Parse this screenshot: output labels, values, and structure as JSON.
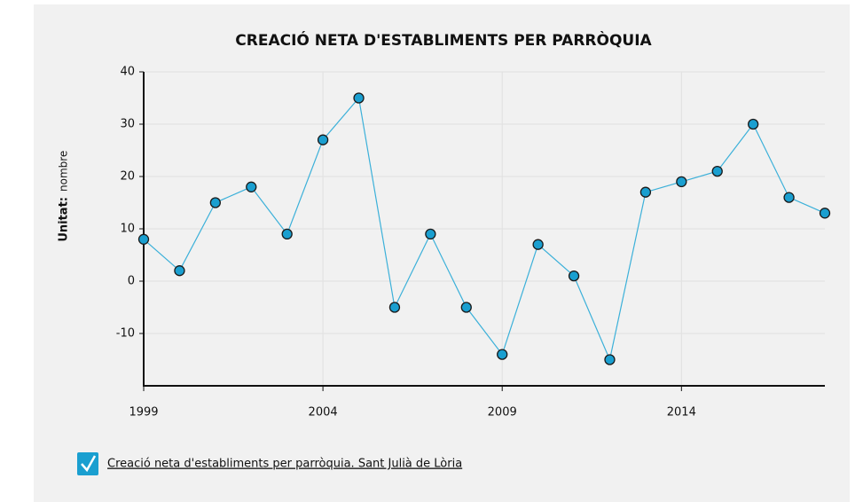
{
  "chart_data": {
    "type": "line",
    "title": "CREACIÓ NETA D'ESTABLIMENTS PER PARRÒQUIA",
    "ylabel": {
      "key": "Unitat:",
      "value": "nombre"
    },
    "x": [
      1999,
      2000,
      2001,
      2002,
      2003,
      2004,
      2005,
      2006,
      2007,
      2008,
      2009,
      2010,
      2011,
      2012,
      2013,
      2014,
      2015,
      2016,
      2017,
      2018
    ],
    "series": [
      {
        "name": "Creació neta d'establiments per parròquia. Sant Julià de Lòria",
        "color": "#1a9fd0",
        "values": [
          8,
          2,
          15,
          18,
          9,
          27,
          35,
          -5,
          9,
          -5,
          -14,
          7,
          1,
          -15,
          17,
          19,
          21,
          30,
          16,
          13
        ]
      }
    ],
    "xlim": [
      1999,
      2018
    ],
    "xticks": [
      1999,
      2004,
      2009,
      2014
    ],
    "ylim": [
      -20,
      40
    ],
    "yticks": [
      -10,
      0,
      10,
      20,
      30,
      40
    ],
    "grid": true
  }
}
